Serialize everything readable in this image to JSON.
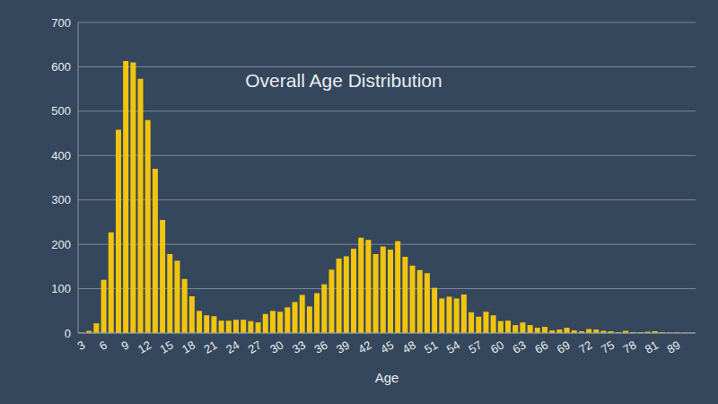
{
  "chart_data": {
    "type": "bar",
    "title": "Overall Age Distribution",
    "x_label": "Age",
    "categories": [
      "3",
      null,
      null,
      "6",
      null,
      null,
      "9",
      null,
      null,
      "12",
      null,
      null,
      "15",
      null,
      null,
      "18",
      null,
      null,
      "21",
      null,
      null,
      "24",
      null,
      null,
      "27",
      null,
      null,
      "30",
      null,
      null,
      "33",
      null,
      null,
      "36",
      null,
      null,
      "39",
      null,
      null,
      "42",
      null,
      null,
      "45",
      null,
      null,
      "48",
      null,
      null,
      "51",
      null,
      null,
      "54",
      null,
      null,
      "57",
      null,
      null,
      "60",
      null,
      null,
      "63",
      null,
      null,
      "66",
      null,
      null,
      "69",
      null,
      null,
      "72",
      null,
      null,
      "75",
      null,
      null,
      "78",
      null,
      null,
      "81",
      null,
      null,
      "89",
      null,
      null
    ],
    "values": [
      1,
      5,
      22,
      120,
      227,
      458,
      613,
      610,
      573,
      480,
      370,
      255,
      178,
      163,
      122,
      83,
      50,
      40,
      38,
      28,
      28,
      30,
      30,
      27,
      24,
      43,
      50,
      48,
      58,
      70,
      86,
      60,
      90,
      110,
      143,
      168,
      173,
      190,
      215,
      210,
      178,
      195,
      188,
      207,
      172,
      152,
      142,
      135,
      102,
      78,
      82,
      78,
      87,
      47,
      37,
      48,
      40,
      27,
      28,
      18,
      24,
      18,
      12,
      14,
      6,
      8,
      12,
      6,
      4,
      9,
      8,
      5,
      4,
      2,
      5,
      2,
      2,
      3,
      4,
      2,
      1,
      1,
      1,
      1
    ],
    "color": "#f1c40f",
    "ylim": [
      0,
      700
    ],
    "yticks": [
      0,
      100,
      200,
      300,
      400,
      500,
      600,
      700
    ],
    "grid": true
  }
}
